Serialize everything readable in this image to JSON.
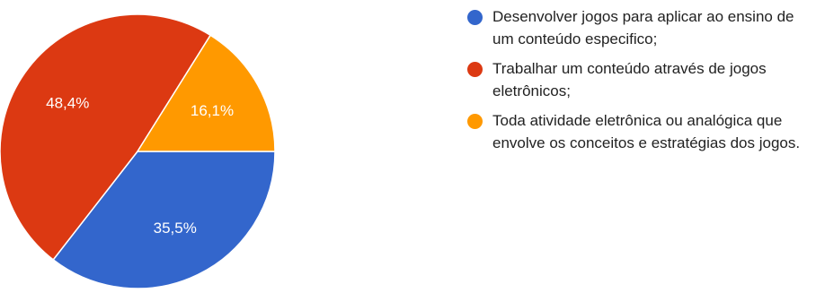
{
  "chart_data": {
    "type": "pie",
    "slices": [
      {
        "label": "Desenvolver jogos para aplicar ao ensino de um conteúdo especifico;",
        "value": 35.5,
        "value_label": "35,5%",
        "color": "#3366cc"
      },
      {
        "label": "Trabalhar um conteúdo através de jogos eletrônicos;",
        "value": 48.4,
        "value_label": "48,4%",
        "color": "#dc3912"
      },
      {
        "label": "Toda atividade eletrônica ou analógica que envolve os conceitos e estratégias dos jogos.",
        "value": 16.1,
        "value_label": "16,1%",
        "color": "#ff9900"
      }
    ],
    "legend_position": "right",
    "start_angle": "3 o'clock, clockwise"
  }
}
